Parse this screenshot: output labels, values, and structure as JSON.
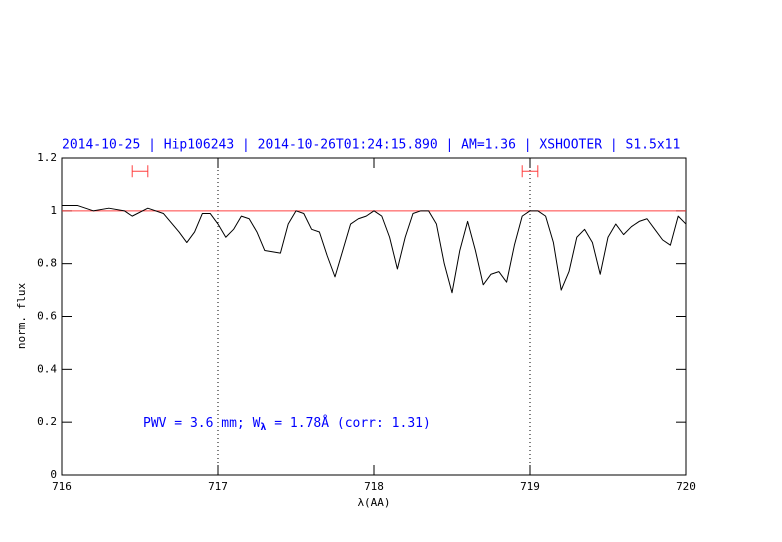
{
  "chart_data": {
    "type": "line",
    "title": "2014-10-25 | Hip106243 | 2014-10-26T01:24:15.890 | AM=1.36 | XSHOOTER | S1.5x11",
    "title_color": "#0000ff",
    "xlabel": "λ(AA)",
    "ylabel": "norm. flux",
    "annotation": [
      "PWV = 3.6 mm; W",
      "λ",
      " = 1.78Å (corr: 1.31)"
    ],
    "annotation_color": "#0000ff",
    "xlim": [
      716,
      720
    ],
    "ylim": [
      0,
      1.2
    ],
    "xticks": [
      716,
      717,
      718,
      719,
      720
    ],
    "yticks": [
      0,
      0.2,
      0.4,
      0.6,
      0.8,
      1,
      1.2
    ],
    "x": [
      716.0,
      716.1,
      716.2,
      716.3,
      716.4,
      716.45,
      716.55,
      716.65,
      716.75,
      716.8,
      716.85,
      716.9,
      716.95,
      717.0,
      717.05,
      717.1,
      717.15,
      717.2,
      717.25,
      717.3,
      717.4,
      717.45,
      717.5,
      717.55,
      717.6,
      717.65,
      717.7,
      717.75,
      717.8,
      717.85,
      717.9,
      717.95,
      718.0,
      718.05,
      718.1,
      718.15,
      718.2,
      718.25,
      718.3,
      718.35,
      718.4,
      718.45,
      718.5,
      718.55,
      718.6,
      718.65,
      718.7,
      718.75,
      718.8,
      718.85,
      718.9,
      718.95,
      719.0,
      719.05,
      719.1,
      719.15,
      719.2,
      719.25,
      719.3,
      719.35,
      719.4,
      719.45,
      719.5,
      719.55,
      719.6,
      719.65,
      719.7,
      719.75,
      719.8,
      719.85,
      719.9,
      719.95,
      720.0
    ],
    "series": [
      {
        "color": "#000000",
        "values": [
          1.02,
          1.02,
          1.0,
          1.01,
          1.0,
          0.98,
          1.01,
          0.99,
          0.92,
          0.88,
          0.92,
          0.99,
          0.99,
          0.95,
          0.9,
          0.93,
          0.98,
          0.97,
          0.92,
          0.85,
          0.84,
          0.95,
          1.0,
          0.99,
          0.93,
          0.92,
          0.83,
          0.75,
          0.85,
          0.95,
          0.97,
          0.98,
          1.0,
          0.98,
          0.9,
          0.78,
          0.9,
          0.99,
          1.0,
          1.0,
          0.95,
          0.8,
          0.69,
          0.85,
          0.96,
          0.85,
          0.72,
          0.76,
          0.77,
          0.73,
          0.87,
          0.98,
          1.0,
          1.0,
          0.98,
          0.88,
          0.7,
          0.77,
          0.9,
          0.93,
          0.88,
          0.76,
          0.9,
          0.95,
          0.91,
          0.94,
          0.96,
          0.97,
          0.93,
          0.89,
          0.87,
          0.98,
          0.95
        ]
      }
    ],
    "reference_line": {
      "value": 1,
      "color": "#ff4040"
    },
    "vlines": [
      717,
      719
    ],
    "markers": {
      "y": 1.15,
      "color": "#ff4040",
      "ranges": [
        [
          716.45,
          716.55
        ],
        [
          718.95,
          719.05
        ]
      ]
    }
  }
}
